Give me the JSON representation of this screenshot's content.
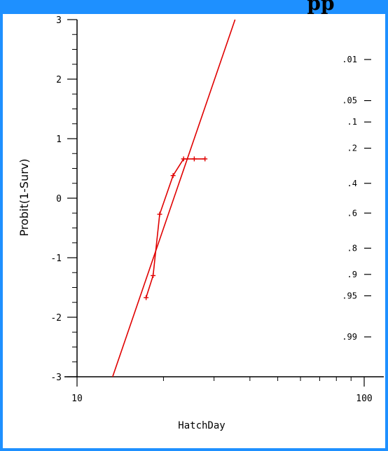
{
  "colors": {
    "frame": "#1e90ff",
    "plot_bg": "#ffffff",
    "series": "#e00000",
    "axis": "#000000"
  },
  "header": {
    "partial_title": "pp"
  },
  "chart_data": {
    "type": "line",
    "xlabel": "HatchDay",
    "ylabel": "Probit(1-Surv)",
    "xscale": "log",
    "xlim": [
      10,
      100
    ],
    "ylim": [
      -3,
      3
    ],
    "x_ticks": [
      10,
      100
    ],
    "x_tick_labels": [
      "10",
      "100"
    ],
    "y_ticks": [
      -3,
      -2,
      -1,
      0,
      1,
      2,
      3
    ],
    "y_tick_labels": [
      "-3",
      "-2",
      "-1",
      "0",
      "1",
      "2",
      "3"
    ],
    "right_axis": {
      "labels": [
        ".01",
        ".05",
        ".1",
        ".2",
        ".4",
        ".6",
        ".8",
        ".9",
        ".95",
        ".99"
      ],
      "probit_positions": [
        2.33,
        1.64,
        1.28,
        0.84,
        0.25,
        -0.25,
        -0.84,
        -1.28,
        -1.64,
        -2.33
      ]
    },
    "series": [
      {
        "values_xy": [
          [
            17.4,
            -1.67
          ],
          [
            18.4,
            -1.3
          ],
          [
            19.4,
            -0.27
          ],
          [
            21.6,
            0.38
          ],
          [
            23.5,
            0.66
          ],
          [
            25.6,
            0.66
          ],
          [
            27.9,
            0.66
          ]
        ],
        "markers": true
      },
      {
        "fit_line": true,
        "values_xy": [
          [
            13.3,
            -3.0
          ],
          [
            35.5,
            3.0
          ]
        ]
      }
    ]
  }
}
